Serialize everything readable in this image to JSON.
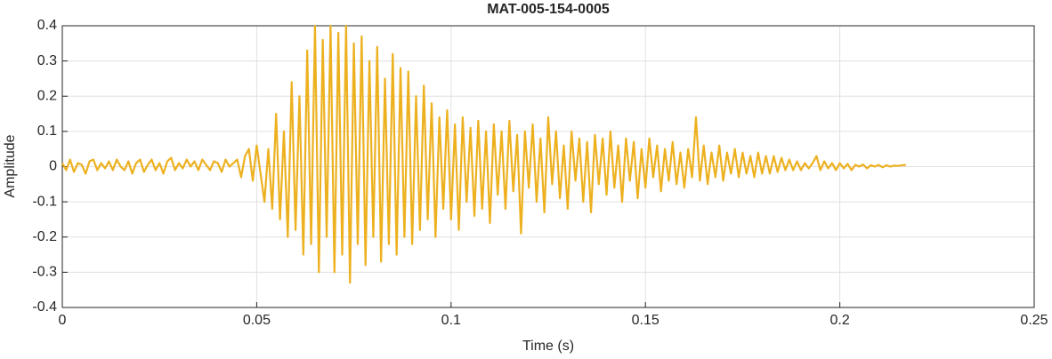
{
  "chart_data": {
    "type": "line",
    "title": "MAT-005-154-0005",
    "xlabel": "Time (s)",
    "ylabel": "Amplitude",
    "x": [
      0,
      0.001,
      0.002,
      0.003,
      0.004,
      0.005,
      0.006,
      0.007,
      0.008,
      0.009,
      0.01,
      0.011,
      0.012,
      0.013,
      0.014,
      0.015,
      0.016,
      0.017,
      0.018,
      0.019,
      0.02,
      0.021,
      0.022,
      0.023,
      0.024,
      0.025,
      0.026,
      0.027,
      0.028,
      0.029,
      0.03,
      0.031,
      0.032,
      0.033,
      0.034,
      0.035,
      0.036,
      0.037,
      0.038,
      0.039,
      0.04,
      0.041,
      0.042,
      0.043,
      0.044,
      0.045,
      0.046,
      0.047,
      0.048,
      0.049,
      0.05,
      0.051,
      0.052,
      0.053,
      0.054,
      0.055,
      0.056,
      0.057,
      0.058,
      0.059,
      0.06,
      0.061,
      0.062,
      0.063,
      0.064,
      0.065,
      0.066,
      0.067,
      0.068,
      0.069,
      0.07,
      0.071,
      0.072,
      0.073,
      0.074,
      0.075,
      0.076,
      0.077,
      0.078,
      0.079,
      0.08,
      0.081,
      0.082,
      0.083,
      0.084,
      0.085,
      0.086,
      0.087,
      0.088,
      0.089,
      0.09,
      0.091,
      0.092,
      0.093,
      0.094,
      0.095,
      0.096,
      0.097,
      0.098,
      0.099,
      0.1,
      0.101,
      0.102,
      0.103,
      0.104,
      0.105,
      0.106,
      0.107,
      0.108,
      0.109,
      0.11,
      0.111,
      0.112,
      0.113,
      0.114,
      0.115,
      0.116,
      0.117,
      0.118,
      0.119,
      0.12,
      0.121,
      0.122,
      0.123,
      0.124,
      0.125,
      0.126,
      0.127,
      0.128,
      0.129,
      0.13,
      0.131,
      0.132,
      0.133,
      0.134,
      0.135,
      0.136,
      0.137,
      0.138,
      0.139,
      0.14,
      0.141,
      0.142,
      0.143,
      0.144,
      0.145,
      0.146,
      0.147,
      0.148,
      0.149,
      0.15,
      0.151,
      0.152,
      0.153,
      0.154,
      0.155,
      0.156,
      0.157,
      0.158,
      0.159,
      0.16,
      0.161,
      0.162,
      0.163,
      0.164,
      0.165,
      0.166,
      0.167,
      0.168,
      0.169,
      0.17,
      0.171,
      0.172,
      0.173,
      0.174,
      0.175,
      0.176,
      0.177,
      0.178,
      0.179,
      0.18,
      0.181,
      0.182,
      0.183,
      0.184,
      0.185,
      0.186,
      0.187,
      0.188,
      0.189,
      0.19,
      0.191,
      0.192,
      0.193,
      0.194,
      0.195,
      0.196,
      0.197,
      0.198,
      0.199,
      0.2,
      0.201,
      0.202,
      0.203,
      0.204,
      0.205,
      0.206,
      0.207,
      0.208,
      0.209,
      0.21,
      0.211,
      0.212,
      0.213,
      0.214,
      0.215,
      0.216,
      0.217
    ],
    "series": [
      {
        "color": "#edb120",
        "values": [
          0.01,
          -0.01,
          0.02,
          -0.015,
          0.01,
          0.005,
          -0.02,
          0.015,
          0.02,
          -0.01,
          0.01,
          -0.005,
          0.015,
          -0.01,
          0.02,
          0.0,
          -0.01,
          0.015,
          -0.02,
          0.01,
          0.02,
          -0.015,
          0.005,
          0.02,
          -0.01,
          0.01,
          -0.02,
          0.015,
          0.025,
          -0.01,
          0.01,
          -0.005,
          0.02,
          0.0,
          0.015,
          -0.01,
          0.02,
          0.005,
          -0.01,
          0.015,
          0.01,
          -0.015,
          0.02,
          0.0,
          0.01,
          0.02,
          -0.03,
          0.03,
          0.05,
          -0.04,
          0.06,
          -0.02,
          -0.1,
          0.05,
          -0.12,
          0.15,
          -0.15,
          0.1,
          -0.2,
          0.24,
          -0.18,
          0.2,
          -0.25,
          0.33,
          -0.22,
          0.4,
          -0.3,
          0.36,
          -0.2,
          0.4,
          -0.3,
          0.38,
          -0.25,
          0.4,
          -0.33,
          0.35,
          -0.22,
          0.37,
          -0.28,
          0.3,
          -0.2,
          0.34,
          -0.27,
          0.25,
          -0.22,
          0.32,
          -0.25,
          0.28,
          -0.2,
          0.27,
          -0.22,
          0.2,
          -0.18,
          0.23,
          -0.15,
          0.18,
          -0.2,
          0.14,
          -0.12,
          0.16,
          -0.15,
          0.12,
          -0.18,
          0.14,
          -0.1,
          0.11,
          -0.14,
          0.13,
          -0.12,
          0.1,
          -0.16,
          0.12,
          -0.08,
          0.1,
          -0.12,
          0.13,
          -0.07,
          0.09,
          -0.19,
          0.1,
          -0.06,
          0.12,
          -0.1,
          0.08,
          -0.13,
          0.14,
          -0.05,
          0.1,
          -0.09,
          0.06,
          -0.12,
          0.1,
          -0.04,
          0.08,
          -0.1,
          0.07,
          -0.13,
          0.09,
          -0.05,
          0.08,
          -0.08,
          0.1,
          -0.06,
          0.06,
          -0.1,
          0.08,
          -0.04,
          0.07,
          -0.09,
          0.05,
          -0.06,
          0.08,
          -0.03,
          0.06,
          -0.07,
          0.05,
          -0.04,
          0.07,
          -0.05,
          0.04,
          -0.06,
          0.05,
          -0.03,
          0.14,
          -0.04,
          0.06,
          -0.05,
          0.04,
          -0.03,
          0.06,
          -0.04,
          0.04,
          -0.02,
          0.05,
          -0.03,
          0.04,
          -0.02,
          0.03,
          -0.03,
          0.04,
          -0.02,
          0.03,
          -0.02,
          0.03,
          -0.015,
          0.025,
          -0.01,
          0.02,
          -0.01,
          0.015,
          -0.01,
          0.01,
          -0.005,
          0.01,
          0.03,
          -0.01,
          0.015,
          -0.005,
          0.01,
          -0.01,
          0.01,
          -0.005,
          0.008,
          -0.01,
          0.005,
          0.0,
          0.006,
          -0.005,
          0.004,
          0.0,
          0.005,
          -0.002,
          0.004,
          0.0,
          0.003,
          0.002,
          0.004,
          0.005
        ]
      }
    ],
    "xlim": [
      0,
      0.25
    ],
    "xticks": [
      0,
      0.05,
      0.1,
      0.15,
      0.2,
      0.25
    ],
    "ylim": [
      -0.4,
      0.4
    ],
    "yticks": [
      -0.4,
      -0.3,
      -0.2,
      -0.1,
      0,
      0.1,
      0.2,
      0.3,
      0.4
    ],
    "grid": true
  }
}
